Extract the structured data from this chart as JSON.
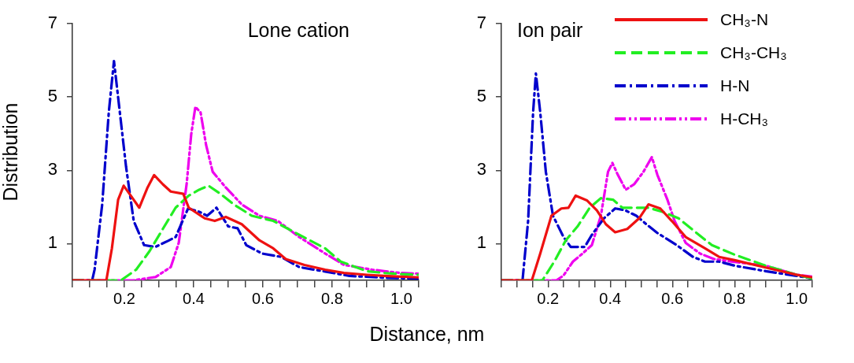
{
  "chart_data": [
    {
      "type": "line",
      "title": "Lone cation",
      "xlabel": "Distance, nm",
      "ylabel": "Distribution",
      "xlim": [
        0.05,
        1.05
      ],
      "ylim": [
        0,
        7
      ],
      "xticks": [
        {
          "value": 0.05,
          "label": null
        },
        {
          "value": 0.1,
          "label": null
        },
        {
          "value": 0.15,
          "label": null
        },
        {
          "value": 0.2,
          "label": "0.2"
        },
        {
          "value": 0.25,
          "label": null
        },
        {
          "value": 0.3,
          "label": null
        },
        {
          "value": 0.35,
          "label": null
        },
        {
          "value": 0.4,
          "label": "0.4"
        },
        {
          "value": 0.45,
          "label": null
        },
        {
          "value": 0.5,
          "label": null
        },
        {
          "value": 0.55,
          "label": null
        },
        {
          "value": 0.6,
          "label": "0.6"
        },
        {
          "value": 0.65,
          "label": null
        },
        {
          "value": 0.7,
          "label": null
        },
        {
          "value": 0.75,
          "label": null
        },
        {
          "value": 0.8,
          "label": "0.8"
        },
        {
          "value": 0.85,
          "label": null
        },
        {
          "value": 0.9,
          "label": null
        },
        {
          "value": 0.95,
          "label": null
        },
        {
          "value": 1.0,
          "label": "1.0"
        },
        {
          "value": 1.05,
          "label": null
        }
      ],
      "yticks": [
        1,
        3,
        5,
        7
      ],
      "grid": false,
      "legend": false,
      "marker": "none",
      "series": [
        {
          "color": "#ee1111",
          "line_style": "solid",
          "x": [
            0.05,
            0.148,
            0.164,
            0.182,
            0.198,
            0.22,
            0.243,
            0.266,
            0.286,
            0.311,
            0.334,
            0.37,
            0.386,
            0.432,
            0.461,
            0.493,
            0.539,
            0.59,
            0.63,
            0.666,
            0.72,
            0.78,
            0.834,
            0.9,
            0.95,
            1.0,
            1.05
          ],
          "values": [
            0,
            0,
            0.87,
            2.2,
            2.58,
            2.29,
            1.98,
            2.51,
            2.87,
            2.62,
            2.42,
            2.36,
            1.98,
            1.69,
            1.62,
            1.73,
            1.53,
            1.09,
            0.87,
            0.58,
            0.42,
            0.29,
            0.2,
            0.15,
            0.12,
            0.1,
            0.08
          ]
        },
        {
          "color": "#22ee22",
          "line_style": "dashed",
          "x": [
            0.05,
            0.19,
            0.234,
            0.273,
            0.311,
            0.348,
            0.386,
            0.416,
            0.443,
            0.477,
            0.516,
            0.568,
            0.63,
            0.705,
            0.78,
            0.825,
            0.9,
            0.95,
            1.0,
            1.05
          ],
          "values": [
            0,
            0,
            0.29,
            0.8,
            1.4,
            1.98,
            2.31,
            2.47,
            2.58,
            2.36,
            2.07,
            1.76,
            1.62,
            1.24,
            0.87,
            0.51,
            0.25,
            0.2,
            0.17,
            0.15
          ]
        },
        {
          "color": "#0000cc",
          "line_style": "dashdot",
          "x": [
            0.05,
            0.107,
            0.114,
            0.136,
            0.155,
            0.17,
            0.205,
            0.227,
            0.257,
            0.289,
            0.325,
            0.348,
            0.384,
            0.416,
            0.439,
            0.466,
            0.5,
            0.527,
            0.552,
            0.598,
            0.652,
            0.705,
            0.78,
            0.85,
            0.95,
            1.05
          ],
          "values": [
            0,
            0,
            0.29,
            2.07,
            4.58,
            5.98,
            3.09,
            1.62,
            0.96,
            0.91,
            1.07,
            1.18,
            1.96,
            1.87,
            1.76,
            1.98,
            1.47,
            1.42,
            0.96,
            0.73,
            0.64,
            0.36,
            0.24,
            0.12,
            0.07,
            0.05
          ]
        },
        {
          "color": "#ee00ee",
          "line_style": "dashdotdot",
          "x": [
            0.05,
            0.227,
            0.29,
            0.334,
            0.357,
            0.38,
            0.393,
            0.405,
            0.42,
            0.436,
            0.455,
            0.493,
            0.539,
            0.59,
            0.643,
            0.705,
            0.78,
            0.834,
            0.916,
            0.95,
            1.0,
            1.05
          ],
          "values": [
            0,
            0,
            0.09,
            0.36,
            1.02,
            2.64,
            3.98,
            4.73,
            4.58,
            3.69,
            2.96,
            2.53,
            2.07,
            1.76,
            1.62,
            1.18,
            0.73,
            0.42,
            0.29,
            0.25,
            0.2,
            0.18
          ]
        }
      ]
    },
    {
      "type": "line",
      "title": "Ion pair",
      "xlim": [
        0.05,
        1.05
      ],
      "ylim": [
        0,
        7
      ],
      "xticks": [
        {
          "value": 0.05,
          "label": null
        },
        {
          "value": 0.1,
          "label": null
        },
        {
          "value": 0.15,
          "label": null
        },
        {
          "value": 0.2,
          "label": "0.2"
        },
        {
          "value": 0.25,
          "label": null
        },
        {
          "value": 0.3,
          "label": null
        },
        {
          "value": 0.35,
          "label": null
        },
        {
          "value": 0.4,
          "label": "0.4"
        },
        {
          "value": 0.45,
          "label": null
        },
        {
          "value": 0.5,
          "label": null
        },
        {
          "value": 0.55,
          "label": null
        },
        {
          "value": 0.6,
          "label": "0.6"
        },
        {
          "value": 0.65,
          "label": null
        },
        {
          "value": 0.7,
          "label": null
        },
        {
          "value": 0.75,
          "label": null
        },
        {
          "value": 0.8,
          "label": "0.8"
        },
        {
          "value": 0.85,
          "label": null
        },
        {
          "value": 0.9,
          "label": null
        },
        {
          "value": 0.95,
          "label": null
        },
        {
          "value": 1.0,
          "label": "1.0"
        },
        {
          "value": 1.05,
          "label": null
        }
      ],
      "yticks": [
        1,
        3,
        5,
        7
      ],
      "grid": false,
      "legend": "top right",
      "marker": "none",
      "series": [
        {
          "name": "CH₃-N",
          "color": "#ee1111",
          "line_style": "solid",
          "x": [
            0.05,
            0.148,
            0.175,
            0.211,
            0.243,
            0.266,
            0.289,
            0.325,
            0.357,
            0.386,
            0.416,
            0.455,
            0.493,
            0.523,
            0.561,
            0.598,
            0.643,
            0.705,
            0.75,
            0.8,
            0.9,
            1.0,
            1.05
          ],
          "values": [
            0,
            0,
            0.73,
            1.76,
            1.96,
            1.98,
            2.31,
            2.18,
            1.91,
            1.53,
            1.31,
            1.4,
            1.69,
            2.07,
            1.96,
            1.62,
            1.18,
            0.87,
            0.64,
            0.55,
            0.35,
            0.15,
            0.08
          ]
        },
        {
          "name": "CH₃-CH₃",
          "color": "#22ee22",
          "line_style": "dashed",
          "x": [
            0.05,
            0.182,
            0.22,
            0.257,
            0.295,
            0.334,
            0.37,
            0.409,
            0.439,
            0.477,
            0.523,
            0.568,
            0.62,
            0.675,
            0.727,
            0.8,
            0.9,
            1.0,
            1.05
          ],
          "values": [
            0,
            0,
            0.51,
            1.09,
            1.47,
            1.98,
            2.24,
            2.2,
            1.98,
            1.98,
            1.98,
            1.87,
            1.69,
            1.31,
            0.96,
            0.7,
            0.4,
            0.15,
            0.05
          ]
        },
        {
          "name": "H-N",
          "color": "#0000cc",
          "line_style": "dashdot",
          "x": [
            0.05,
            0.118,
            0.136,
            0.152,
            0.161,
            0.175,
            0.193,
            0.216,
            0.25,
            0.273,
            0.318,
            0.341,
            0.38,
            0.416,
            0.448,
            0.484,
            0.516,
            0.552,
            0.614,
            0.666,
            0.705,
            0.75,
            0.8,
            0.9,
            1.0,
            1.05
          ],
          "values": [
            0,
            0,
            1.62,
            4.58,
            5.64,
            4.58,
            2.96,
            1.76,
            1.18,
            0.91,
            0.91,
            1.24,
            1.69,
            1.96,
            1.91,
            1.76,
            1.53,
            1.29,
            0.96,
            0.64,
            0.51,
            0.51,
            0.4,
            0.25,
            0.12,
            0.05
          ]
        },
        {
          "name": "H-CH₃",
          "color": "#ee00ee",
          "line_style": "dashdotdot",
          "x": [
            0.05,
            0.227,
            0.25,
            0.28,
            0.311,
            0.341,
            0.37,
            0.393,
            0.407,
            0.425,
            0.45,
            0.477,
            0.507,
            0.534,
            0.552,
            0.584,
            0.607,
            0.643,
            0.689,
            0.734,
            0.8,
            0.9,
            1.0,
            1.05
          ],
          "values": [
            0,
            0,
            0.13,
            0.51,
            0.73,
            0.96,
            1.76,
            2.96,
            3.2,
            2.87,
            2.47,
            2.62,
            2.96,
            3.36,
            2.87,
            2.2,
            1.62,
            1.02,
            0.73,
            0.58,
            0.5,
            0.4,
            0.15,
            0.1
          ]
        }
      ]
    }
  ]
}
